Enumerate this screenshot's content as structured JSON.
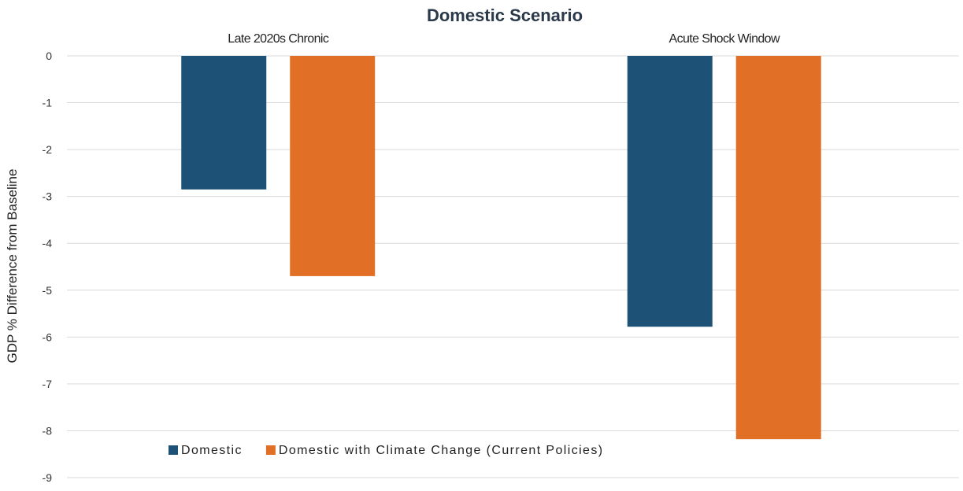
{
  "chart_data": {
    "type": "bar",
    "title": "Domestic Scenario",
    "xlabel": "",
    "ylabel": "GDP % Difference from Baseline",
    "categories": [
      "Late 2020s Chronic",
      "Acute Shock Window"
    ],
    "series": [
      {
        "name": "Domestic",
        "color": "#1d5276",
        "values": [
          -2.85,
          -5.78
        ]
      },
      {
        "name": "Domestic with Climate Change (Current Policies)",
        "color": "#e26f26",
        "values": [
          -4.7,
          -8.18
        ]
      }
    ],
    "ylim": [
      -9,
      0
    ],
    "yticks": [
      "0",
      "-1",
      "-2",
      "-3",
      "-4",
      "-5",
      "-6",
      "-7",
      "-8",
      "-9"
    ],
    "grid": true,
    "legend_position": "bottom-left, inside plot",
    "category_label_position": "top"
  }
}
